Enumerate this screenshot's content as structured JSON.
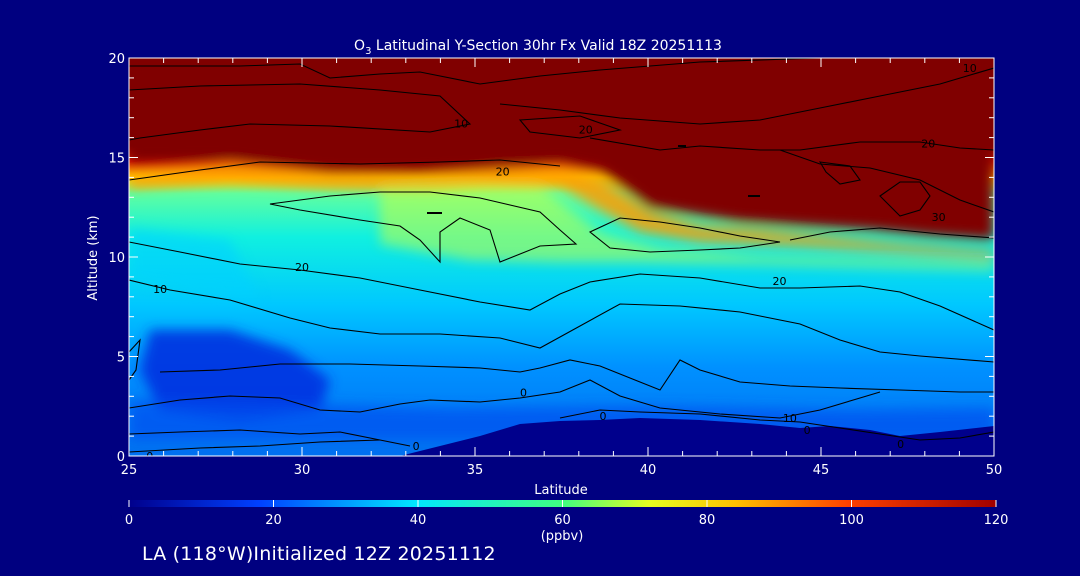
{
  "chart_data": {
    "type": "heatmap",
    "title_prefix": "O",
    "title_sub": "3",
    "title_rest": " Latitudinal Y-Section 30hr  Fx Valid 18Z 20251113",
    "xlabel": "Latitude",
    "ylabel": "Altitude (km)",
    "xlim": [
      25,
      50
    ],
    "ylim": [
      0,
      20
    ],
    "x_ticks": [
      "25",
      "30",
      "35",
      "40",
      "45",
      "50"
    ],
    "y_ticks": [
      "0",
      "5",
      "10",
      "15",
      "20"
    ],
    "colorbar": {
      "min": 0,
      "max": 120,
      "unit": "(ppbv)",
      "ticks": [
        "0",
        "20",
        "40",
        "60",
        "80",
        "100",
        "120"
      ]
    },
    "contour_labels": [
      {
        "text": "10",
        "lat": 25.9,
        "alt": 8.4
      },
      {
        "text": "20",
        "lat": 30.0,
        "alt": 9.5
      },
      {
        "text": "20",
        "lat": 35.8,
        "alt": 14.3
      },
      {
        "text": "0",
        "lat": 25.6,
        "alt": 0.0
      },
      {
        "text": "0",
        "lat": 33.3,
        "alt": 0.5
      },
      {
        "text": "0",
        "lat": 38.7,
        "alt": 2.0
      },
      {
        "text": "0",
        "lat": 36.4,
        "alt": 3.2
      },
      {
        "text": "20",
        "lat": 43.8,
        "alt": 8.8
      },
      {
        "text": "10",
        "lat": 44.1,
        "alt": 1.9
      },
      {
        "text": "0",
        "lat": 44.6,
        "alt": 1.3
      },
      {
        "text": "0",
        "lat": 47.3,
        "alt": 0.6
      },
      {
        "text": "20",
        "lat": 38.2,
        "alt": 16.4
      },
      {
        "text": "10",
        "lat": 34.6,
        "alt": 16.7
      },
      {
        "text": "10",
        "lat": 49.3,
        "alt": 19.5
      },
      {
        "text": "20",
        "lat": 48.1,
        "alt": 15.7
      },
      {
        "text": "30",
        "lat": 48.4,
        "alt": 12.0
      }
    ]
  },
  "footer": {
    "text": "LA (118°W)Initialized 12Z 20251112"
  },
  "colors": {
    "background": "#000080",
    "terrain": "#00008c",
    "contour": "#000000",
    "text": "#ffffff"
  }
}
